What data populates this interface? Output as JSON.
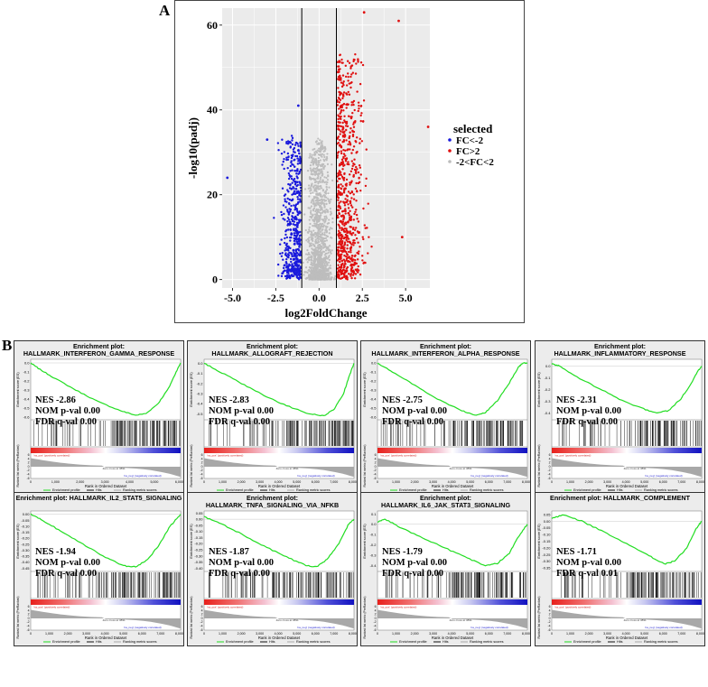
{
  "panel_a": {
    "letter": "A",
    "legend_title": "selected",
    "legend": [
      {
        "label": "FC<-2",
        "color": "#1a1adc"
      },
      {
        "label": "FC>2",
        "color": "#e01010"
      },
      {
        "label": "-2<FC<2",
        "color": "#bdbdbd"
      }
    ]
  },
  "panel_b": {
    "letter": "B"
  },
  "chart_data": [
    {
      "type": "scatter",
      "title": "",
      "xlabel": "log2FoldChange",
      "ylabel": "-log10(padj)",
      "xlim": [
        -5.6,
        6.4
      ],
      "ylim": [
        -2,
        64
      ],
      "x_ticks": [
        "-5.0",
        "-2.5",
        "0.0",
        "2.5",
        "5.0"
      ],
      "y_ticks": [
        "0",
        "20",
        "40",
        "60"
      ],
      "grid": true,
      "threshold_lines_x": [
        -1,
        1
      ],
      "legend_position": "right",
      "series": [
        {
          "name": "FC<-2",
          "color": "#1a1adc",
          "note_points": [
            [
              -5.3,
              24
            ],
            [
              -1.2,
              41
            ],
            [
              -3.0,
              33
            ]
          ]
        },
        {
          "name": "FC>2",
          "color": "#e01010",
          "note_points": [
            [
              2.6,
              63
            ],
            [
              4.6,
              61
            ],
            [
              6.3,
              36
            ],
            [
              4.8,
              10
            ]
          ]
        },
        {
          "name": "-2<FC<2",
          "color": "#bdbdbd"
        }
      ]
    }
  ],
  "gsea": [
    {
      "title_a": "Enrichment plot:",
      "title_b": "HALLMARK_INTERFERON_GAMMA_RESPONSE",
      "nes": "NES -2.86",
      "nom": "NOM p-val 0.00",
      "fdr": "FDR q-val 0.00",
      "es_ticks": [
        "0.0",
        "-0.1",
        "-0.2",
        "-0.3",
        "-0.4",
        "-0.5",
        "-0.6"
      ],
      "ymin": -0.62,
      "ymax": 0.03,
      "curve": [
        [
          0,
          0
        ],
        [
          0.05,
          -0.06
        ],
        [
          0.15,
          -0.16
        ],
        [
          0.3,
          -0.3
        ],
        [
          0.45,
          -0.43
        ],
        [
          0.6,
          -0.53
        ],
        [
          0.7,
          -0.58
        ],
        [
          0.77,
          -0.56
        ],
        [
          0.85,
          -0.45
        ],
        [
          0.92,
          -0.28
        ],
        [
          0.97,
          -0.1
        ],
        [
          1,
          0
        ]
      ],
      "hit_zone": [
        0.55,
        1.0
      ],
      "rank_ticks": [
        "0",
        "1,000",
        "2,000",
        "3,000",
        "4,000",
        "5,000",
        "6,000"
      ]
    },
    {
      "title_a": "Enrichment plot: HALLMARK_ALLOGRAFT_REJECTION",
      "title_b": "",
      "nes": "NES -2.83",
      "nom": "NOM p-val 0.00",
      "fdr": "FDR q-val 0.00",
      "es_ticks": [
        "0.0",
        "-0.1",
        "-0.2",
        "-0.3",
        "-0.4",
        "-0.5"
      ],
      "ymin": -0.55,
      "ymax": 0.03,
      "curve": [
        [
          0,
          0
        ],
        [
          0.1,
          -0.08
        ],
        [
          0.25,
          -0.2
        ],
        [
          0.4,
          -0.32
        ],
        [
          0.55,
          -0.42
        ],
        [
          0.7,
          -0.5
        ],
        [
          0.8,
          -0.52
        ],
        [
          0.87,
          -0.45
        ],
        [
          0.93,
          -0.3
        ],
        [
          0.97,
          -0.12
        ],
        [
          1,
          0
        ]
      ],
      "hit_zone": [
        0.55,
        1.0
      ],
      "rank_ticks": [
        "0",
        "1,000",
        "2,000",
        "3,000",
        "4,000",
        "5,000",
        "6,000",
        "7,000",
        "8,000"
      ]
    },
    {
      "title_a": "Enrichment plot:",
      "title_b": "HALLMARK_INTERFERON_ALPHA_RESPONSE",
      "nes": "NES -2.75",
      "nom": "NOM p-val 0.00",
      "fdr": "FDR q-val 0.00",
      "es_ticks": [
        "0.0",
        "-0.1",
        "-0.2",
        "-0.3",
        "-0.4",
        "-0.5",
        "-0.6"
      ],
      "ymin": -0.62,
      "ymax": 0.03,
      "curve": [
        [
          0,
          0
        ],
        [
          0.1,
          -0.1
        ],
        [
          0.25,
          -0.25
        ],
        [
          0.4,
          -0.4
        ],
        [
          0.55,
          -0.52
        ],
        [
          0.65,
          -0.58
        ],
        [
          0.72,
          -0.55
        ],
        [
          0.8,
          -0.42
        ],
        [
          0.88,
          -0.22
        ],
        [
          0.94,
          -0.05
        ],
        [
          0.97,
          0.0
        ],
        [
          1,
          0
        ]
      ],
      "hit_zone": [
        0.5,
        0.97
      ],
      "rank_ticks": [
        "0",
        "1,000",
        "2,000",
        "3,000",
        "4,000",
        "5,000",
        "6,000",
        "7,000",
        "8,000"
      ]
    },
    {
      "title_a": "Enrichment plot:",
      "title_b": "HALLMARK_INFLAMMATORY_RESPONSE",
      "nes": "NES -2.31",
      "nom": "NOM p-val 0.00",
      "fdr": "FDR q-val 0.00",
      "es_ticks": [
        "0.0",
        "-0.1",
        "-0.2",
        "-0.3",
        "-0.4"
      ],
      "ymin": -0.45,
      "ymax": 0.05,
      "curve": [
        [
          0,
          0.02
        ],
        [
          0.05,
          0
        ],
        [
          0.15,
          -0.08
        ],
        [
          0.3,
          -0.18
        ],
        [
          0.45,
          -0.28
        ],
        [
          0.6,
          -0.36
        ],
        [
          0.7,
          -0.4
        ],
        [
          0.78,
          -0.38
        ],
        [
          0.86,
          -0.28
        ],
        [
          0.93,
          -0.15
        ],
        [
          0.97,
          -0.05
        ],
        [
          1,
          0
        ]
      ],
      "hit_zone": [
        0.55,
        1.0
      ],
      "rank_ticks": [
        "0",
        "1,000",
        "2,000",
        "3,000",
        "4,000",
        "5,000",
        "6,000",
        "7,000",
        "8,000"
      ]
    },
    {
      "title_a": "Enrichment plot: HALLMARK_IL2_STAT5_SIGNALING",
      "title_b": "",
      "nes": "NES -1.94",
      "nom": "NOM p-val 0.00",
      "fdr": "FDR q-val 0.00",
      "es_ticks": [
        "0.00",
        "-0.05",
        "-0.10",
        "-0.15",
        "-0.20",
        "-0.25",
        "-0.30",
        "-0.35",
        "-0.40",
        "-0.45"
      ],
      "ymin": -0.47,
      "ymax": 0.02,
      "curve": [
        [
          0,
          0
        ],
        [
          0.08,
          -0.05
        ],
        [
          0.2,
          -0.14
        ],
        [
          0.35,
          -0.25
        ],
        [
          0.5,
          -0.36
        ],
        [
          0.62,
          -0.43
        ],
        [
          0.7,
          -0.44
        ],
        [
          0.78,
          -0.38
        ],
        [
          0.86,
          -0.25
        ],
        [
          0.93,
          -0.1
        ],
        [
          1,
          0
        ]
      ],
      "hit_zone": [
        0.45,
        1.0
      ],
      "rank_ticks": [
        "0",
        "1,000",
        "2,000",
        "3,000",
        "4,000",
        "5,000",
        "6,000",
        "7,000",
        "8,000"
      ]
    },
    {
      "title_a": "Enrichment plot:",
      "title_b": "HALLMARK_TNFA_SIGNALING_VIA_NFKB",
      "nes": "NES -1.87",
      "nom": "NOM p-val 0.00",
      "fdr": "FDR q-val 0.00",
      "es_ticks": [
        "0.05",
        "0.00",
        "-0.05",
        "-0.10",
        "-0.15",
        "-0.20",
        "-0.25",
        "-0.30",
        "-0.35",
        "-0.40"
      ],
      "ymin": -0.42,
      "ymax": 0.06,
      "curve": [
        [
          0,
          0.02
        ],
        [
          0.1,
          -0.03
        ],
        [
          0.25,
          -0.12
        ],
        [
          0.4,
          -0.22
        ],
        [
          0.55,
          -0.31
        ],
        [
          0.68,
          -0.38
        ],
        [
          0.75,
          -0.39
        ],
        [
          0.82,
          -0.33
        ],
        [
          0.9,
          -0.2
        ],
        [
          0.96,
          -0.05
        ],
        [
          1,
          0
        ]
      ],
      "hit_zone": [
        0.45,
        1.0
      ],
      "rank_ticks": [
        "0",
        "1,000",
        "2,000",
        "3,000",
        "4,000",
        "5,000",
        "6,000",
        "7,000",
        "8,000"
      ]
    },
    {
      "title_a": "Enrichment plot:",
      "title_b": "HALLMARK_IL6_JAK_STAT3_SIGNALING",
      "nes": "NES -1.79",
      "nom": "NOM p-val 0.00",
      "fdr": "FDR q-val 0.00",
      "es_ticks": [
        "0.1",
        "0.0",
        "-0.1",
        "-0.2",
        "-0.3",
        "-0.4"
      ],
      "ymin": -0.45,
      "ymax": 0.12,
      "curve": [
        [
          0,
          0.02
        ],
        [
          0.05,
          0.05
        ],
        [
          0.15,
          -0.03
        ],
        [
          0.3,
          -0.13
        ],
        [
          0.45,
          -0.23
        ],
        [
          0.6,
          -0.33
        ],
        [
          0.72,
          -0.4
        ],
        [
          0.8,
          -0.38
        ],
        [
          0.88,
          -0.28
        ],
        [
          0.94,
          -0.12
        ],
        [
          1,
          0
        ]
      ],
      "hit_zone": [
        0.5,
        1.0
      ],
      "rank_ticks": [
        "0",
        "1,000",
        "2,000",
        "3,000",
        "4,000",
        "5,000",
        "6,000",
        "7,000",
        "8,000"
      ]
    },
    {
      "title_a": "Enrichment plot: HALLMARK_COMPLEMENT",
      "title_b": "",
      "nes": "NES -1.71",
      "nom": "NOM p-val 0.00",
      "fdr": "FDR q-val 0.01",
      "es_ticks": [
        "0.05",
        "0.00",
        "-0.05",
        "-0.10",
        "-0.15",
        "-0.20",
        "-0.25",
        "-0.30",
        "-0.35"
      ],
      "ymin": -0.37,
      "ymax": 0.07,
      "curve": [
        [
          0,
          0.02
        ],
        [
          0.08,
          0.05
        ],
        [
          0.2,
          0.0
        ],
        [
          0.35,
          -0.08
        ],
        [
          0.5,
          -0.17
        ],
        [
          0.65,
          -0.26
        ],
        [
          0.75,
          -0.32
        ],
        [
          0.82,
          -0.3
        ],
        [
          0.9,
          -0.2
        ],
        [
          0.96,
          -0.06
        ],
        [
          1,
          0
        ]
      ],
      "hit_zone": [
        0.5,
        1.0
      ],
      "rank_ticks": [
        "0",
        "1,000",
        "2,000",
        "3,000",
        "4,000",
        "5,000",
        "6,000",
        "7,000",
        "8,000"
      ]
    }
  ],
  "gsea_common": {
    "es_label": "Enrichment score (ES)",
    "rank_label": "Ranked list metric (PreRanked)",
    "pos_label": "'na_pos' (positively correlated)",
    "neg_label": "'na_neg' (negatively correlated)",
    "zero_cross": "Zero cross at 3891",
    "x_label": "Rank in Ordered Dataset",
    "legend_profile": "Enrichment profile",
    "legend_hits": "Hits",
    "legend_metric": "Ranking metric scores",
    "metric_ticks": [
      "6",
      "4",
      "2",
      "0",
      "-2",
      "-4",
      "-6"
    ],
    "line_color": "#22dd22",
    "metric_color": "#a8a8a8"
  }
}
